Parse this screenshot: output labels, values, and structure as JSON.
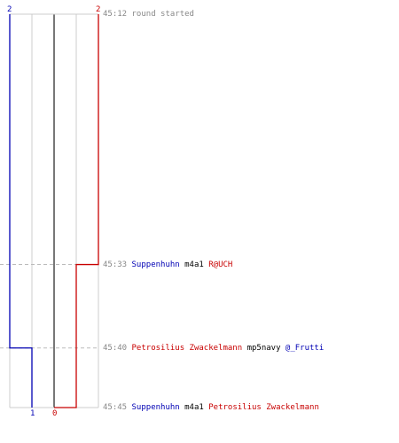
{
  "chart_data": {
    "type": "line",
    "x_axis": {
      "ticks": [
        {
          "label": "2",
          "value": 0,
          "color": "#0000b4"
        },
        {
          "label": "1",
          "value": 1,
          "color": "#0000b4"
        },
        {
          "label": "0",
          "value": 2,
          "color": "#c80000"
        },
        {
          "label": "2",
          "value": 4,
          "color": "#c80000"
        }
      ],
      "range": [
        0,
        4
      ]
    },
    "y_axis": {
      "range": [
        "45:12",
        "45:45"
      ]
    },
    "grid": true,
    "series": [
      {
        "color": "#0000b4",
        "points": [
          {
            "x": 0,
            "time": "45:12"
          },
          {
            "x": 0,
            "time": "45:40"
          },
          {
            "x": 1,
            "time": "45:40"
          },
          {
            "x": 1,
            "time": "45:45"
          }
        ]
      },
      {
        "color": "#c80000",
        "points": [
          {
            "x": 4,
            "time": "45:12"
          },
          {
            "x": 4,
            "time": "45:33"
          },
          {
            "x": 3,
            "time": "45:33"
          },
          {
            "x": 3,
            "time": "45:45"
          },
          {
            "x": 2,
            "time": "45:45"
          }
        ]
      }
    ],
    "events": [
      {
        "time": "45:12",
        "segments": [
          {
            "text": "round started",
            "color": "#888888"
          }
        ]
      },
      {
        "time": "45:33",
        "segments": [
          {
            "text": "Suppenhuhn",
            "color": "#0000b4"
          },
          {
            "text": "m4a1",
            "color": "#000000"
          },
          {
            "text": "R@UCH",
            "color": "#c80000"
          }
        ]
      },
      {
        "time": "45:40",
        "segments": [
          {
            "text": "Petrosilius Zwackelmann",
            "color": "#c80000"
          },
          {
            "text": "mp5navy",
            "color": "#000000"
          },
          {
            "text": "@_Frutti",
            "color": "#0000b4"
          }
        ]
      },
      {
        "time": "45:45",
        "segments": [
          {
            "text": "Suppenhuhn",
            "color": "#0000b4"
          },
          {
            "text": "m4a1",
            "color": "#000000"
          },
          {
            "text": "Petrosilius Zwackelmann",
            "color": "#c80000"
          }
        ]
      }
    ]
  }
}
